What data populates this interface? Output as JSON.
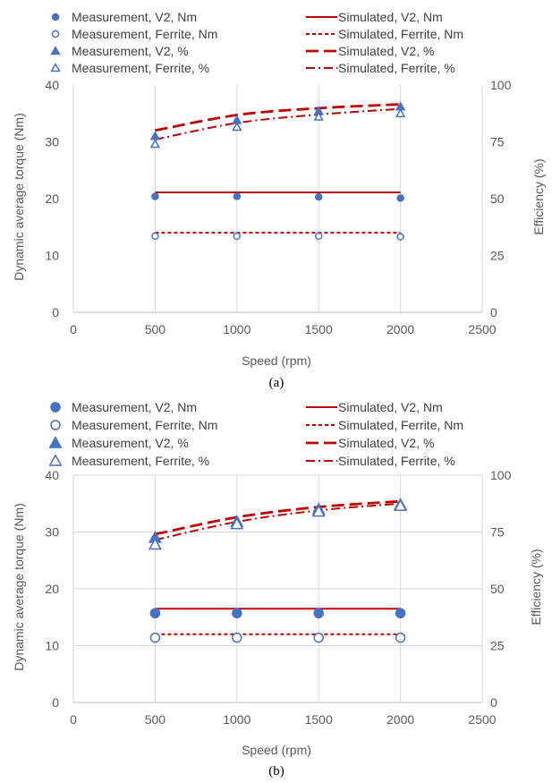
{
  "panels": [
    {
      "caption": "(a)",
      "legend": [
        {
          "label": "Measurement, V2, Nm",
          "marker": "filled-circle"
        },
        {
          "label": "Simulated, V2, Nm",
          "line": "solid"
        },
        {
          "label": "Measurement, Ferrite, Nm",
          "marker": "open-circle"
        },
        {
          "label": "Simulated, Ferrite, Nm",
          "line": "dotted"
        },
        {
          "label": "Measurement, V2, %",
          "marker": "filled-triangle"
        },
        {
          "label": "Simulated, V2, %",
          "line": "long-dash"
        },
        {
          "label": "Measurement, Ferrite, %",
          "marker": "open-triangle"
        },
        {
          "label": "Simulated, Ferrite, %",
          "line": "dash-dot"
        }
      ]
    },
    {
      "caption": "(b)",
      "legend": [
        {
          "label": "Measurement, V2, Nm",
          "marker": "filled-circle"
        },
        {
          "label": "Simulated, V2, Nm",
          "line": "solid"
        },
        {
          "label": "Measurement, Ferrite, Nm",
          "marker": "open-circle"
        },
        {
          "label": "Simulated, Ferrite, Nm",
          "line": "dotted"
        },
        {
          "label": "Measurement, V2, %",
          "marker": "filled-triangle"
        },
        {
          "label": "Simulated, V2, %",
          "line": "long-dash"
        },
        {
          "label": "Measurement, Ferrite, %",
          "marker": "open-triangle"
        },
        {
          "label": "Simulated, Ferrite, %",
          "line": "dash-dot"
        }
      ]
    }
  ],
  "colors": {
    "measurement": "#4472C4",
    "simulated": "#C00000",
    "grid": "#D9D9D9",
    "axis_text": "#595959"
  },
  "chart_data": [
    {
      "type": "scatter",
      "title": "",
      "xlabel": "Speed (rpm)",
      "ylabel": "Dynamic average torque (Nm)",
      "y2label": "Efficiency (%)",
      "xlim": [
        0,
        2500
      ],
      "ylim": [
        0,
        40
      ],
      "y2lim": [
        0,
        100
      ],
      "xticks": [
        "0",
        "500",
        "1000",
        "1500",
        "2000",
        "2500"
      ],
      "yticks": [
        "0",
        "10",
        "20",
        "30",
        "40"
      ],
      "y2ticks": [
        "0",
        "25",
        "50",
        "75",
        "100"
      ],
      "grid": "vertical",
      "legend_position": "top",
      "series": [
        {
          "name": "Measurement, V2, Nm",
          "kind": "marker",
          "marker": "filled-circle",
          "axis": "left",
          "x": [
            500,
            1000,
            1500,
            2000
          ],
          "y": [
            20.4,
            20.4,
            20.3,
            20.1
          ]
        },
        {
          "name": "Measurement, Ferrite, Nm",
          "kind": "marker",
          "marker": "open-circle",
          "axis": "left",
          "x": [
            500,
            1000,
            1500,
            2000
          ],
          "y": [
            13.4,
            13.4,
            13.4,
            13.3
          ]
        },
        {
          "name": "Measurement, V2, %",
          "kind": "marker",
          "marker": "filled-triangle",
          "axis": "right",
          "x": [
            500,
            1000,
            1500,
            2000
          ],
          "y": [
            77.5,
            84.5,
            88.5,
            90.5
          ]
        },
        {
          "name": "Measurement, Ferrite, %",
          "kind": "marker",
          "marker": "open-triangle",
          "axis": "right",
          "x": [
            500,
            1000,
            1500,
            2000
          ],
          "y": [
            74.0,
            81.5,
            86.0,
            87.5
          ]
        },
        {
          "name": "Simulated, V2, Nm",
          "kind": "line",
          "line": "solid",
          "axis": "left",
          "x": [
            500,
            2000
          ],
          "y": [
            21.1,
            21.1
          ]
        },
        {
          "name": "Simulated, Ferrite, Nm",
          "kind": "line",
          "line": "dotted",
          "axis": "left",
          "x": [
            500,
            2000
          ],
          "y": [
            14.0,
            14.0
          ]
        },
        {
          "name": "Simulated, V2, %",
          "kind": "line",
          "line": "long-dash",
          "axis": "right",
          "x": [
            500,
            1000,
            1500,
            2000
          ],
          "y": [
            80.0,
            86.8,
            89.8,
            91.5
          ]
        },
        {
          "name": "Simulated, Ferrite, %",
          "kind": "line",
          "line": "dash-dot",
          "axis": "right",
          "x": [
            500,
            1000,
            1500,
            2000
          ],
          "y": [
            76.0,
            83.3,
            87.0,
            89.5
          ]
        }
      ]
    },
    {
      "type": "scatter",
      "title": "",
      "xlabel": "Speed (rpm)",
      "ylabel": "Dynamic average torque (Nm)",
      "y2label": "Efficiency (%)",
      "xlim": [
        0,
        2500
      ],
      "ylim": [
        0,
        40
      ],
      "y2lim": [
        0,
        100
      ],
      "xticks": [
        "0",
        "500",
        "1000",
        "1500",
        "2000",
        "2500"
      ],
      "yticks": [
        "0",
        "10",
        "20",
        "30",
        "40"
      ],
      "y2ticks": [
        "0",
        "25",
        "50",
        "75",
        "100"
      ],
      "grid": "both",
      "legend_position": "top",
      "series": [
        {
          "name": "Measurement, V2, Nm",
          "kind": "marker",
          "marker": "filled-circle",
          "axis": "left",
          "x": [
            500,
            1000,
            1500,
            2000
          ],
          "y": [
            15.7,
            15.7,
            15.7,
            15.7
          ]
        },
        {
          "name": "Measurement, Ferrite, Nm",
          "kind": "marker",
          "marker": "open-circle",
          "axis": "left",
          "x": [
            500,
            1000,
            1500,
            2000
          ],
          "y": [
            11.4,
            11.4,
            11.4,
            11.4
          ]
        },
        {
          "name": "Measurement, V2, %",
          "kind": "marker",
          "marker": "filled-triangle",
          "axis": "right",
          "x": [
            500,
            1000,
            1500,
            2000
          ],
          "y": [
            72.5,
            79.5,
            85.0,
            87.0
          ]
        },
        {
          "name": "Measurement, Ferrite, %",
          "kind": "marker",
          "marker": "open-triangle",
          "axis": "right",
          "x": [
            500,
            1000,
            1500,
            2000
          ],
          "y": [
            69.5,
            78.5,
            84.0,
            86.5
          ]
        },
        {
          "name": "Simulated, V2, Nm",
          "kind": "line",
          "line": "solid",
          "axis": "left",
          "x": [
            500,
            2000
          ],
          "y": [
            16.5,
            16.5
          ]
        },
        {
          "name": "Simulated, Ferrite, Nm",
          "kind": "line",
          "line": "dotted",
          "axis": "left",
          "x": [
            500,
            2000
          ],
          "y": [
            12.0,
            12.0
          ]
        },
        {
          "name": "Simulated, V2, %",
          "kind": "line",
          "line": "long-dash",
          "axis": "right",
          "x": [
            500,
            1000,
            1500,
            2000
          ],
          "y": [
            74.0,
            81.5,
            86.0,
            88.5
          ]
        },
        {
          "name": "Simulated, Ferrite, %",
          "kind": "line",
          "line": "dash-dot",
          "axis": "right",
          "x": [
            500,
            1000,
            1500,
            2000
          ],
          "y": [
            71.5,
            79.5,
            84.5,
            87.5
          ]
        }
      ]
    }
  ]
}
